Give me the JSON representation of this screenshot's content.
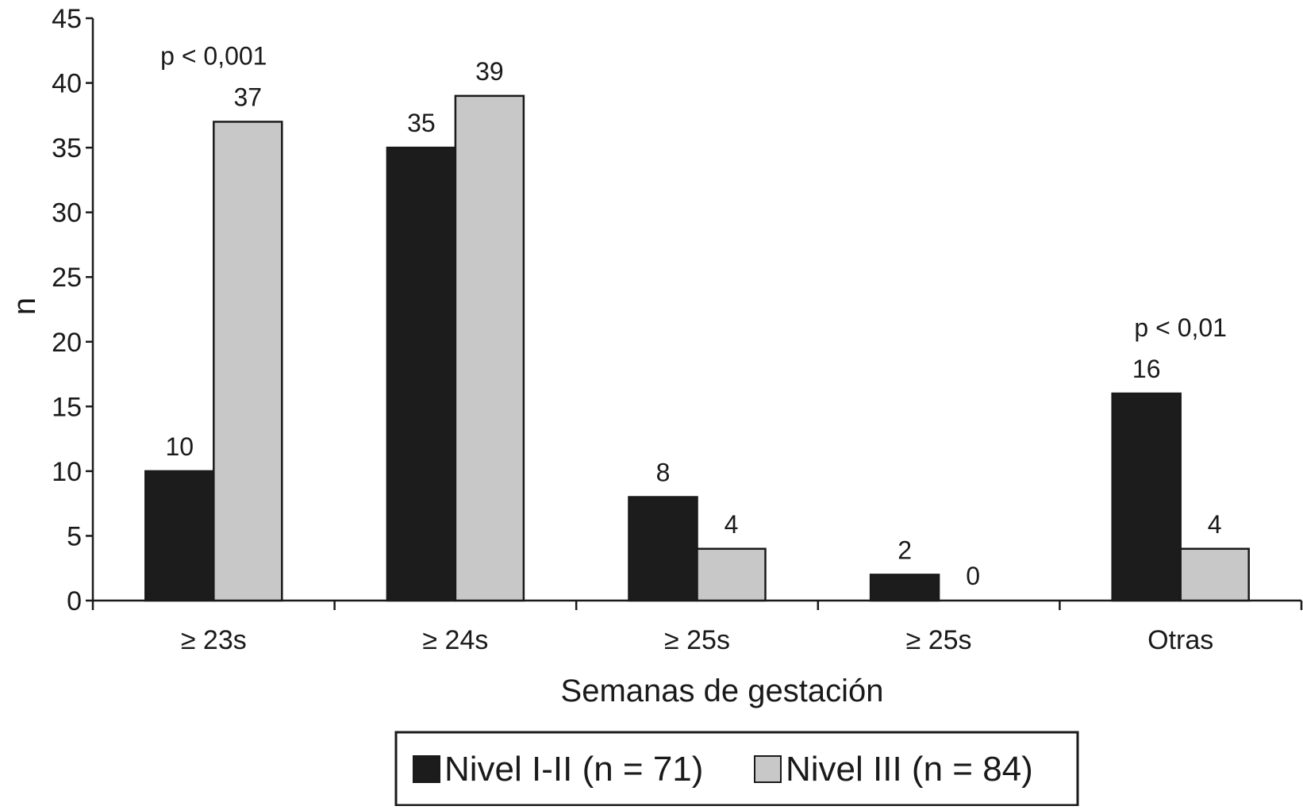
{
  "chart_data": {
    "type": "bar",
    "xlabel": "Semanas de gestación",
    "ylabel": "n",
    "ylim": [
      0,
      45
    ],
    "yticks": [
      0,
      5,
      10,
      15,
      20,
      25,
      30,
      35,
      40,
      45
    ],
    "categories": [
      "≥ 23s",
      "≥ 24s",
      "≥ 25s",
      "≥ 25s",
      "Otras"
    ],
    "series": [
      {
        "name": "Nivel I-II (n = 71)",
        "color": "#1c1c1c",
        "values": [
          10,
          35,
          8,
          2,
          16
        ]
      },
      {
        "name": "Nivel III (n = 84)",
        "color": "#c8c8c8",
        "values": [
          37,
          39,
          4,
          0,
          4
        ]
      }
    ],
    "annotations": [
      {
        "text": "p < 0,001",
        "category": 0
      },
      {
        "text": "p < 0,01",
        "category": 4
      }
    ],
    "legend_position": "bottom-center",
    "grid": false
  }
}
